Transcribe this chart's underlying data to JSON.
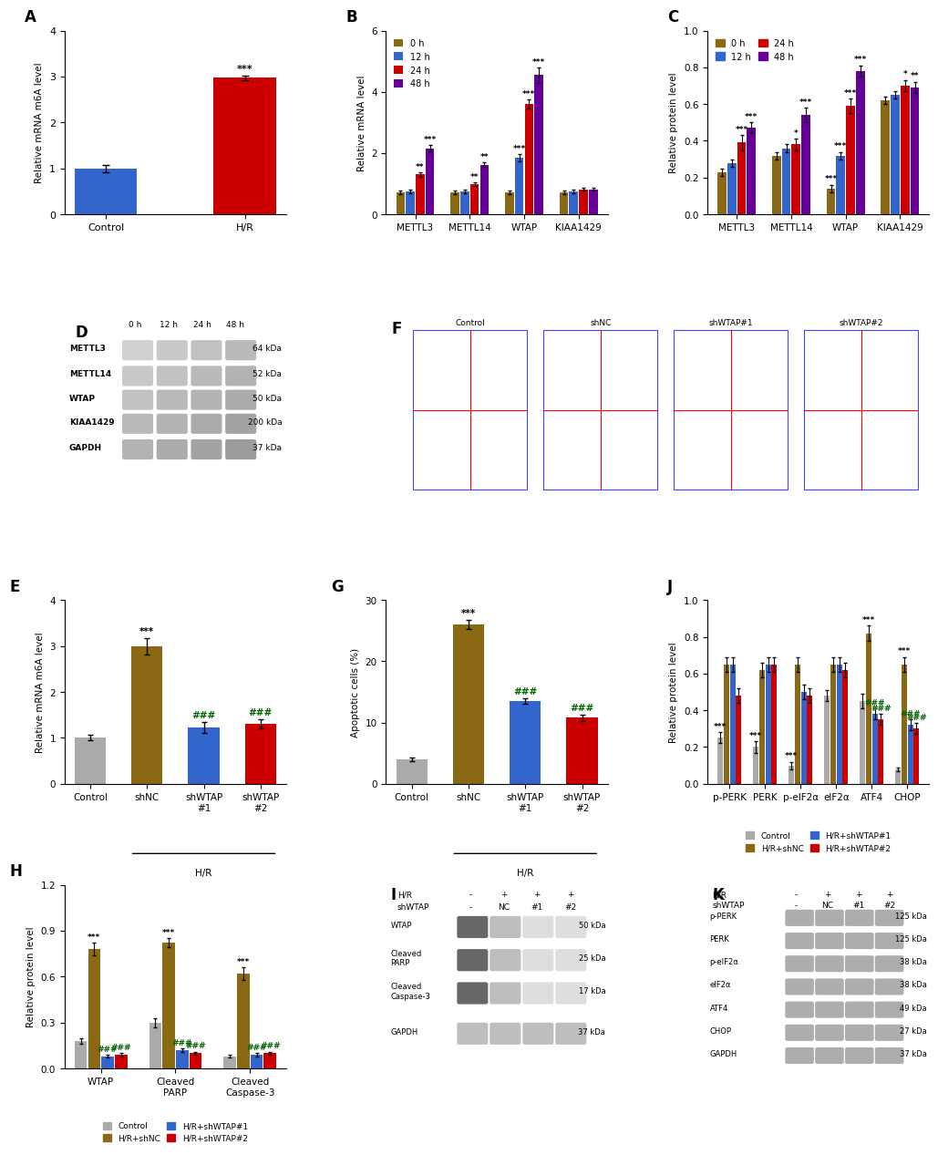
{
  "panel_A": {
    "categories": [
      "Control",
      "H/R"
    ],
    "values": [
      1.0,
      2.97
    ],
    "errors": [
      0.08,
      0.05
    ],
    "colors": [
      "#3366CC",
      "#CC0000"
    ],
    "ylabel": "Relative mRNA m6A level",
    "ylim": [
      0,
      4
    ],
    "yticks": [
      0,
      1,
      2,
      3,
      4
    ],
    "sig_above": [
      "",
      "***"
    ]
  },
  "panel_B": {
    "groups": [
      "METTL3",
      "METTL14",
      "WTAP",
      "KIAA1429"
    ],
    "time_labels": [
      "0 h",
      "12 h",
      "24 h",
      "48 h"
    ],
    "colors": [
      "#8B6914",
      "#3366CC",
      "#CC0000",
      "#660099"
    ],
    "values": {
      "METTL3": [
        0.72,
        0.75,
        1.3,
        2.15
      ],
      "METTL14": [
        0.72,
        0.75,
        0.98,
        1.62
      ],
      "WTAP": [
        0.72,
        1.85,
        3.6,
        4.55
      ],
      "KIAA1429": [
        0.72,
        0.75,
        0.82,
        0.82
      ]
    },
    "errors": {
      "METTL3": [
        0.05,
        0.05,
        0.08,
        0.1
      ],
      "METTL14": [
        0.05,
        0.05,
        0.07,
        0.07
      ],
      "WTAP": [
        0.05,
        0.12,
        0.15,
        0.25
      ],
      "KIAA1429": [
        0.05,
        0.05,
        0.05,
        0.05
      ]
    },
    "sig": {
      "METTL3": [
        "",
        "",
        "**",
        "***"
      ],
      "METTL14": [
        "",
        "",
        "**",
        "**"
      ],
      "WTAP": [
        "",
        "***",
        "***",
        "***"
      ],
      "KIAA1429": [
        "",
        "",
        "",
        ""
      ]
    },
    "ylabel": "Relative mRNA level",
    "ylim": [
      0,
      6
    ],
    "yticks": [
      0,
      2,
      4,
      6
    ]
  },
  "panel_C": {
    "groups": [
      "METTL3",
      "METTL14",
      "WTAP",
      "KIAA1429"
    ],
    "time_labels": [
      "0 h",
      "12 h",
      "24 h",
      "48 h"
    ],
    "colors": [
      "#8B6914",
      "#3366CC",
      "#CC0000",
      "#660099"
    ],
    "values": {
      "METTL3": [
        0.23,
        0.28,
        0.39,
        0.47
      ],
      "METTL14": [
        0.32,
        0.36,
        0.38,
        0.54
      ],
      "WTAP": [
        0.14,
        0.32,
        0.59,
        0.78
      ],
      "KIAA1429": [
        0.62,
        0.65,
        0.7,
        0.69
      ]
    },
    "errors": {
      "METTL3": [
        0.02,
        0.02,
        0.04,
        0.03
      ],
      "METTL14": [
        0.02,
        0.02,
        0.03,
        0.04
      ],
      "WTAP": [
        0.02,
        0.02,
        0.04,
        0.03
      ],
      "KIAA1429": [
        0.02,
        0.02,
        0.03,
        0.03
      ]
    },
    "sig": {
      "METTL3": [
        "",
        "",
        "***",
        "***"
      ],
      "METTL14": [
        "",
        "",
        "*",
        "***"
      ],
      "WTAP": [
        "***",
        "***",
        "***",
        "***"
      ],
      "KIAA1429": [
        "",
        "",
        "*",
        "**"
      ]
    },
    "ylabel": "Relative protein level",
    "ylim": [
      0.0,
      1.0
    ],
    "yticks": [
      0.0,
      0.2,
      0.4,
      0.6,
      0.8,
      1.0
    ]
  },
  "panel_E": {
    "categories": [
      "Control",
      "shNC",
      "shWTAP#1",
      "shWTAP#2"
    ],
    "values": [
      1.0,
      3.0,
      1.22,
      1.3
    ],
    "errors": [
      0.06,
      0.18,
      0.12,
      0.1
    ],
    "colors": [
      "#AAAAAA",
      "#8B6914",
      "#3366CC",
      "#CC0000"
    ],
    "ylabel": "Relative mRNA m6A level",
    "ylim": [
      0,
      4
    ],
    "yticks": [
      0,
      1,
      2,
      3,
      4
    ],
    "sig": [
      "",
      "***",
      "###",
      "###"
    ],
    "xlabel_bottom": "H/R",
    "xlabel_offset": [
      1,
      2,
      3
    ]
  },
  "panel_G": {
    "categories": [
      "Control",
      "shNC",
      "shWTAP#1",
      "shWTAP#2"
    ],
    "values": [
      4.0,
      26.0,
      13.5,
      10.8
    ],
    "errors": [
      0.3,
      0.8,
      0.5,
      0.5
    ],
    "colors": [
      "#AAAAAA",
      "#8B6914",
      "#3366CC",
      "#CC0000"
    ],
    "ylabel": "Apoptotic cells (%)",
    "ylim": [
      0,
      30
    ],
    "yticks": [
      0,
      10,
      20,
      30
    ],
    "sig": [
      "",
      "***",
      "###",
      "###"
    ],
    "xlabel_bottom": "H/R",
    "xlabel_offset": [
      1,
      2,
      3
    ]
  },
  "panel_H": {
    "groups": [
      "WTAP",
      "Cleaved\nPARP",
      "Cleaved\nCaspase-3"
    ],
    "group_labels": [
      "Control",
      "H/R+shNC",
      "H/R+shWTAP#1",
      "H/R+shWTAP#2"
    ],
    "colors": [
      "#AAAAAA",
      "#8B6914",
      "#3366CC",
      "#CC0000"
    ],
    "values": {
      "WTAP": [
        0.18,
        0.78,
        0.08,
        0.09
      ],
      "Cleaved\nPARP": [
        0.3,
        0.82,
        0.12,
        0.1
      ],
      "Cleaved\nCaspase-3": [
        0.08,
        0.62,
        0.09,
        0.1
      ]
    },
    "errors": {
      "WTAP": [
        0.02,
        0.04,
        0.01,
        0.01
      ],
      "Cleaved\nPARP": [
        0.03,
        0.03,
        0.01,
        0.01
      ],
      "Cleaved\nCaspase-3": [
        0.01,
        0.04,
        0.01,
        0.01
      ]
    },
    "sig": {
      "WTAP": [
        "",
        "***",
        "###",
        "###"
      ],
      "Cleaved\nPARP": [
        "",
        "***",
        "###",
        "###"
      ],
      "Cleaved\nCaspase-3": [
        "",
        "***",
        "###",
        "###"
      ]
    },
    "ylabel": "Relative protein level",
    "ylim": [
      0.0,
      1.2
    ],
    "yticks": [
      0.0,
      0.3,
      0.6,
      0.9,
      1.2
    ]
  },
  "panel_J": {
    "groups": [
      "p-PERK",
      "PERK",
      "p-eIF2α",
      "eIF2α",
      "ATF4",
      "CHOP"
    ],
    "group_labels": [
      "Control",
      "H/R+shNC",
      "H/R+shWTAP#1",
      "H/R+shWTAP#2"
    ],
    "colors": [
      "#AAAAAA",
      "#8B6914",
      "#3366CC",
      "#CC0000"
    ],
    "values": {
      "p-PERK": [
        0.25,
        0.65,
        0.65,
        0.48
      ],
      "PERK": [
        0.2,
        0.62,
        0.65,
        0.65
      ],
      "p-eIF2α": [
        0.1,
        0.65,
        0.5,
        0.48
      ],
      "eIF2α": [
        0.48,
        0.65,
        0.65,
        0.62
      ],
      "ATF4": [
        0.45,
        0.82,
        0.38,
        0.35
      ],
      "CHOP": [
        0.08,
        0.65,
        0.32,
        0.3
      ]
    },
    "errors": {
      "p-PERK": [
        0.03,
        0.04,
        0.04,
        0.04
      ],
      "PERK": [
        0.03,
        0.04,
        0.04,
        0.04
      ],
      "p-eIF2α": [
        0.02,
        0.04,
        0.04,
        0.04
      ],
      "eIF2α": [
        0.03,
        0.04,
        0.04,
        0.04
      ],
      "ATF4": [
        0.04,
        0.04,
        0.03,
        0.03
      ],
      "CHOP": [
        0.01,
        0.04,
        0.03,
        0.03
      ]
    },
    "sig": {
      "p-PERK": [
        "***",
        "",
        "",
        ""
      ],
      "PERK": [
        "***",
        "",
        "",
        ""
      ],
      "p-eIF2α": [
        "***",
        "",
        "",
        ""
      ],
      "eIF2α": [
        "",
        "",
        "",
        ""
      ],
      "ATF4": [
        "",
        "***",
        "###",
        "###"
      ],
      "CHOP": [
        "",
        "***",
        "###",
        "###"
      ]
    },
    "ylabel": "Relative protein level",
    "ylim": [
      0.0,
      1.0
    ],
    "yticks": [
      0.0,
      0.2,
      0.4,
      0.6,
      0.8,
      1.0
    ]
  },
  "colors": {
    "tan": "#8B6914",
    "blue": "#3366CC",
    "red": "#CC0000",
    "purple": "#660099",
    "gray": "#AAAAAA"
  }
}
